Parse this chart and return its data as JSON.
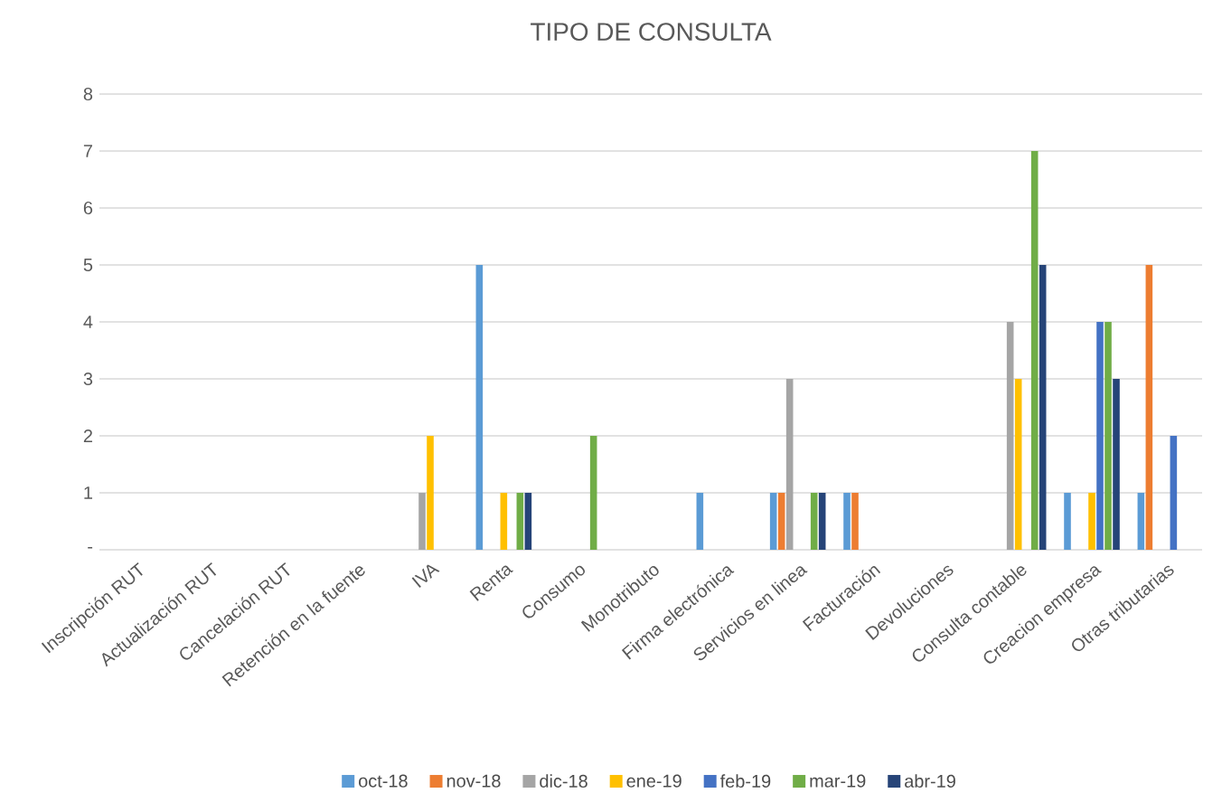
{
  "chart_data": {
    "type": "bar",
    "title": "TIPO DE CONSULTA",
    "categories": [
      "Inscripción RUT",
      "Actualización RUT",
      "Cancelación RUT",
      "Retención en la fuente",
      "IVA",
      "Renta",
      "Consumo",
      "Monotributo",
      "Firma electrónica",
      "Servicios en linea",
      "Facturación",
      "Devoluciones",
      "Consulta contable",
      "Creacion empresa",
      "Otras tributarias"
    ],
    "series": [
      {
        "name": "oct-18",
        "color": "#5b9bd5",
        "values": [
          0,
          0,
          0,
          0,
          0,
          5,
          0,
          0,
          1,
          1,
          1,
          0,
          0,
          1,
          1
        ]
      },
      {
        "name": "nov-18",
        "color": "#ed7d31",
        "values": [
          0,
          0,
          0,
          0,
          0,
          0,
          0,
          0,
          0,
          1,
          1,
          0,
          0,
          0,
          5
        ]
      },
      {
        "name": "dic-18",
        "color": "#a5a5a5",
        "values": [
          0,
          0,
          0,
          0,
          1,
          0,
          0,
          0,
          0,
          3,
          0,
          0,
          4,
          0,
          0
        ]
      },
      {
        "name": "ene-19",
        "color": "#ffc000",
        "values": [
          0,
          0,
          0,
          0,
          2,
          1,
          0,
          0,
          0,
          0,
          0,
          0,
          3,
          1,
          0
        ]
      },
      {
        "name": "feb-19",
        "color": "#4472c4",
        "values": [
          0,
          0,
          0,
          0,
          0,
          0,
          0,
          0,
          0,
          0,
          0,
          0,
          0,
          4,
          2
        ]
      },
      {
        "name": "mar-19",
        "color": "#70ad47",
        "values": [
          0,
          0,
          0,
          0,
          0,
          1,
          2,
          0,
          0,
          1,
          0,
          0,
          7,
          4,
          0
        ]
      },
      {
        "name": "abr-19",
        "color": "#264478",
        "values": [
          0,
          0,
          0,
          0,
          0,
          1,
          0,
          0,
          0,
          1,
          0,
          0,
          5,
          3,
          0
        ]
      }
    ],
    "ylim": [
      0,
      8
    ],
    "yticks": [
      {
        "value": 0,
        "label": "-"
      },
      1,
      2,
      3,
      4,
      5,
      6,
      7,
      8
    ],
    "grid": "y",
    "legend": "bottom"
  }
}
